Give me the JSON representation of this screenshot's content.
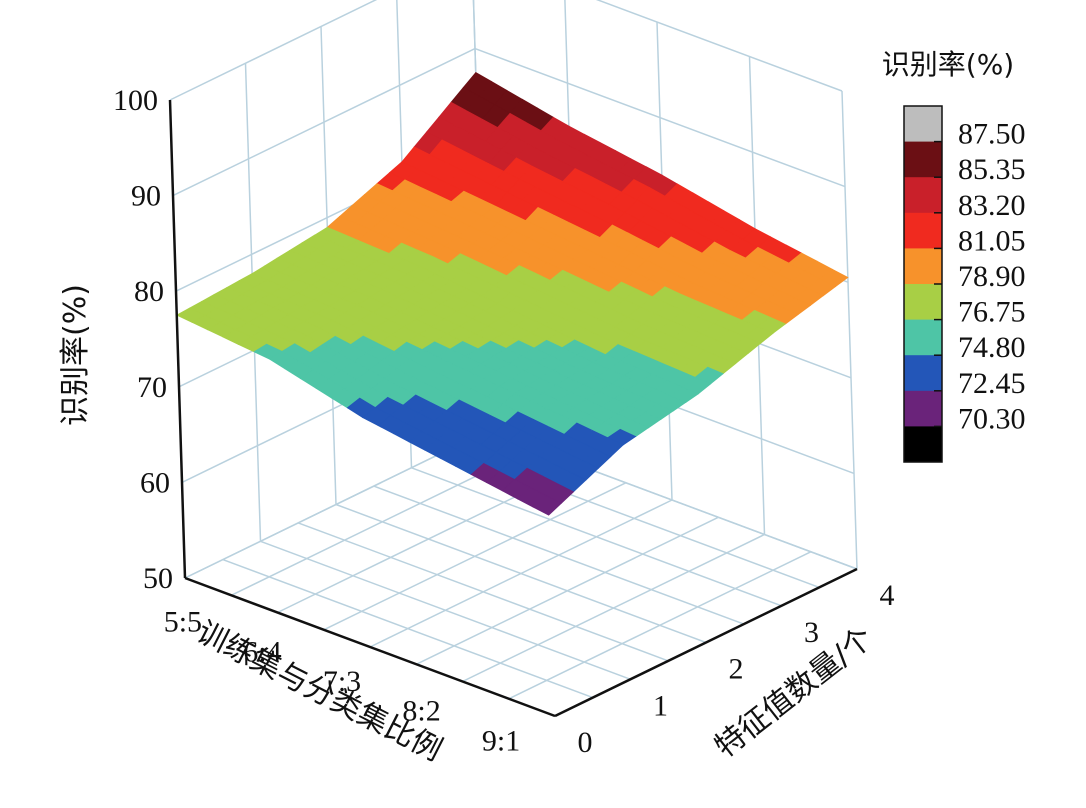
{
  "chart_data": {
    "type": "surface3d",
    "title": "",
    "zlabel": "识别率(%)",
    "xlabel": "训练集与分类集比例",
    "ylabel": "特征值数量/个",
    "zlim": [
      50,
      100
    ],
    "z_ticks": [
      "100",
      "90",
      "80",
      "70",
      "60",
      "50"
    ],
    "x_categories": [
      "5:5",
      "6:4",
      "7:3",
      "8:2",
      "9:1"
    ],
    "y_ticks": [
      "0",
      "1",
      "2",
      "3",
      "4"
    ],
    "grid": true,
    "colorbar": {
      "title": "识别率(%)",
      "levels": [
        "87.50",
        "85.35",
        "83.20",
        "81.05",
        "78.90",
        "76.75",
        "74.80",
        "72.45",
        "70.30"
      ],
      "colors": [
        "#bdbdbd",
        "#6b0f14",
        "#c9202a",
        "#f02a1f",
        "#f7922b",
        "#a8cf45",
        "#4ec5a6",
        "#2356b8",
        "#6a237a",
        "#000000"
      ]
    },
    "surface": {
      "x_index": [
        0,
        1,
        2,
        3,
        4
      ],
      "y_values": [
        0,
        1,
        2,
        3,
        4
      ],
      "z_values": [
        [
          77.5,
          76.5,
          74.0,
          72.5,
          71.0
        ],
        [
          78.0,
          77.5,
          76.5,
          75.5,
          74.5
        ],
        [
          79.0,
          78.5,
          77.5,
          76.5,
          76.0
        ],
        [
          82.0,
          81.0,
          80.0,
          79.0,
          78.5
        ],
        [
          87.5,
          85.5,
          84.0,
          82.0,
          80.5
        ]
      ]
    }
  }
}
